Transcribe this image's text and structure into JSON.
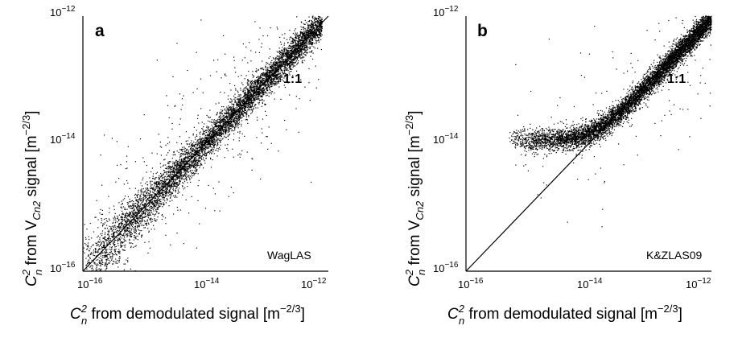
{
  "figure": {
    "panels": [
      {
        "letter": "a",
        "instrument": "WagLAS",
        "ratio_label": "1:1",
        "xlabel": {
          "base": "C",
          "sup": "2",
          "sub": "n",
          "rest": " from demodulated signal [m",
          "unit_sup": "−2/3",
          "close": "]"
        },
        "ylabel": {
          "base": "C",
          "sup": "2",
          "sub": "n",
          "mid": " from V",
          "vsub": "Cn2",
          "rest": " signal [m",
          "unit_sup": "−2/3",
          "close": "]"
        }
      },
      {
        "letter": "b",
        "instrument": "K&ZLAS09",
        "ratio_label": "1:1",
        "xlabel": {
          "base": "C",
          "sup": "2",
          "sub": "n",
          "rest": " from demodulated signal [m",
          "unit_sup": "−2/3",
          "close": "]"
        },
        "ylabel": {
          "base": "C",
          "sup": "2",
          "sub": "n",
          "mid": " from V",
          "vsub": "Cn2",
          "rest": " signal [m",
          "unit_sup": "−2/3",
          "close": "]"
        }
      }
    ],
    "ticks": {
      "base": "10",
      "exps": [
        "−16",
        "−14",
        "−12"
      ]
    }
  },
  "chart_data": [
    {
      "type": "scatter",
      "panel": "a",
      "title": "",
      "xlabel": "C_n^2 from demodulated signal [m^-2/3]",
      "ylabel": "C_n^2 from V_Cn2 signal [m^-2/3]",
      "xscale": "log",
      "yscale": "log",
      "xlim": [
        1e-16,
        1e-12
      ],
      "ylim": [
        1e-16,
        1e-12
      ],
      "x_ticks": [
        "10^-16",
        "10^-14",
        "10^-12"
      ],
      "y_ticks": [
        "10^-16",
        "10^-14",
        "10^-12"
      ],
      "reference_line": "1:1",
      "annotation": "WagLAS",
      "marker_color": "#000000",
      "distribution": {
        "log10_x_range": [
          -16.0,
          -12.1
        ],
        "relation": "log10(y) ≈ log10(x)",
        "core_spread_decades": 0.12,
        "outlier_band_decades": 1.2,
        "approx_points_shown": 7000
      }
    },
    {
      "type": "scatter",
      "panel": "b",
      "title": "",
      "xlabel": "C_n^2 from demodulated signal [m^-2/3]",
      "ylabel": "C_n^2 from V_Cn2 signal [m^-2/3]",
      "xscale": "log",
      "yscale": "log",
      "xlim": [
        1e-16,
        1e-12
      ],
      "ylim": [
        1e-16,
        1e-12
      ],
      "x_ticks": [
        "10^-16",
        "10^-14",
        "10^-12"
      ],
      "y_ticks": [
        "10^-16",
        "10^-14",
        "10^-12"
      ],
      "reference_line": "1:1",
      "annotation": "K&ZLAS09",
      "marker_color": "#000000",
      "distribution": {
        "log10_x_range": [
          -15.3,
          -12.0
        ],
        "saturation_floor_log10_y": -13.95,
        "relation": "log10(y) ≈ 0.5*log10(10^(2*floor) + x^2 + ...) (levels off near 1.2e-14 at low x, approaches 1:1 at high x)",
        "approx_points_shown": 7000
      }
    }
  ]
}
